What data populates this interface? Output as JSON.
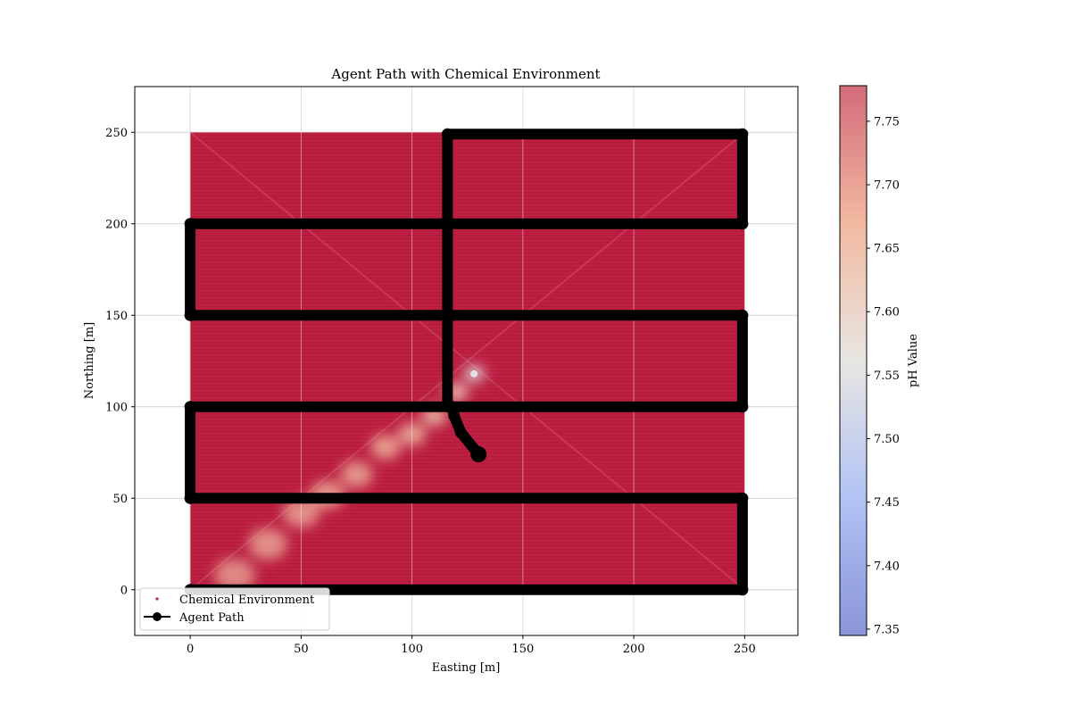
{
  "chart_data": {
    "type": "scatter",
    "title": "Agent Path with Chemical Environment",
    "xlabel": "Easting [m]",
    "ylabel": "Northing [m]",
    "xlim": [
      -25,
      274
    ],
    "ylim": [
      -25,
      275
    ],
    "xticks": [
      0,
      50,
      100,
      150,
      200,
      250
    ],
    "yticks": [
      0,
      50,
      100,
      150,
      200,
      250
    ],
    "grid": true,
    "legend_position": "lower-left",
    "environment": {
      "name": "Chemical Environment",
      "extent_x": [
        0,
        250
      ],
      "extent_y": [
        0,
        250
      ],
      "background_ph": 7.775,
      "plume": [
        {
          "x": 20,
          "y": 8,
          "ph": 7.7
        },
        {
          "x": 35,
          "y": 25,
          "ph": 7.69
        },
        {
          "x": 50,
          "y": 42,
          "ph": 7.69
        },
        {
          "x": 62,
          "y": 52,
          "ph": 7.68
        },
        {
          "x": 75,
          "y": 63,
          "ph": 7.68
        },
        {
          "x": 88,
          "y": 78,
          "ph": 7.67
        },
        {
          "x": 100,
          "y": 85,
          "ph": 7.66
        },
        {
          "x": 110,
          "y": 95,
          "ph": 7.64
        },
        {
          "x": 120,
          "y": 108,
          "ph": 7.62
        },
        {
          "x": 128,
          "y": 118,
          "ph": 7.55
        }
      ]
    },
    "agent_path": {
      "name": "Agent Path",
      "color": "#000000",
      "points": [
        [
          130,
          74
        ],
        [
          122,
          86
        ],
        [
          119,
          95
        ],
        [
          118,
          100
        ],
        [
          116,
          101
        ],
        [
          116,
          150
        ],
        [
          116,
          200
        ],
        [
          116,
          249
        ],
        [
          249,
          249
        ],
        [
          249,
          200
        ],
        [
          0,
          200
        ],
        [
          0,
          150
        ],
        [
          249,
          150
        ],
        [
          249,
          100
        ],
        [
          0,
          100
        ],
        [
          0,
          50
        ],
        [
          249,
          50
        ],
        [
          249,
          0
        ],
        [
          0,
          0
        ]
      ]
    },
    "colorbar": {
      "label": "pH Value",
      "min": 7.345,
      "max": 7.778,
      "ticks": [
        7.35,
        7.4,
        7.45,
        7.5,
        7.55,
        7.6,
        7.65,
        7.7,
        7.75
      ],
      "tick_labels": [
        "7.35",
        "7.40",
        "7.45",
        "7.50",
        "7.55",
        "7.60",
        "7.65",
        "7.70",
        "7.75"
      ],
      "colormap": "coolwarm"
    }
  }
}
